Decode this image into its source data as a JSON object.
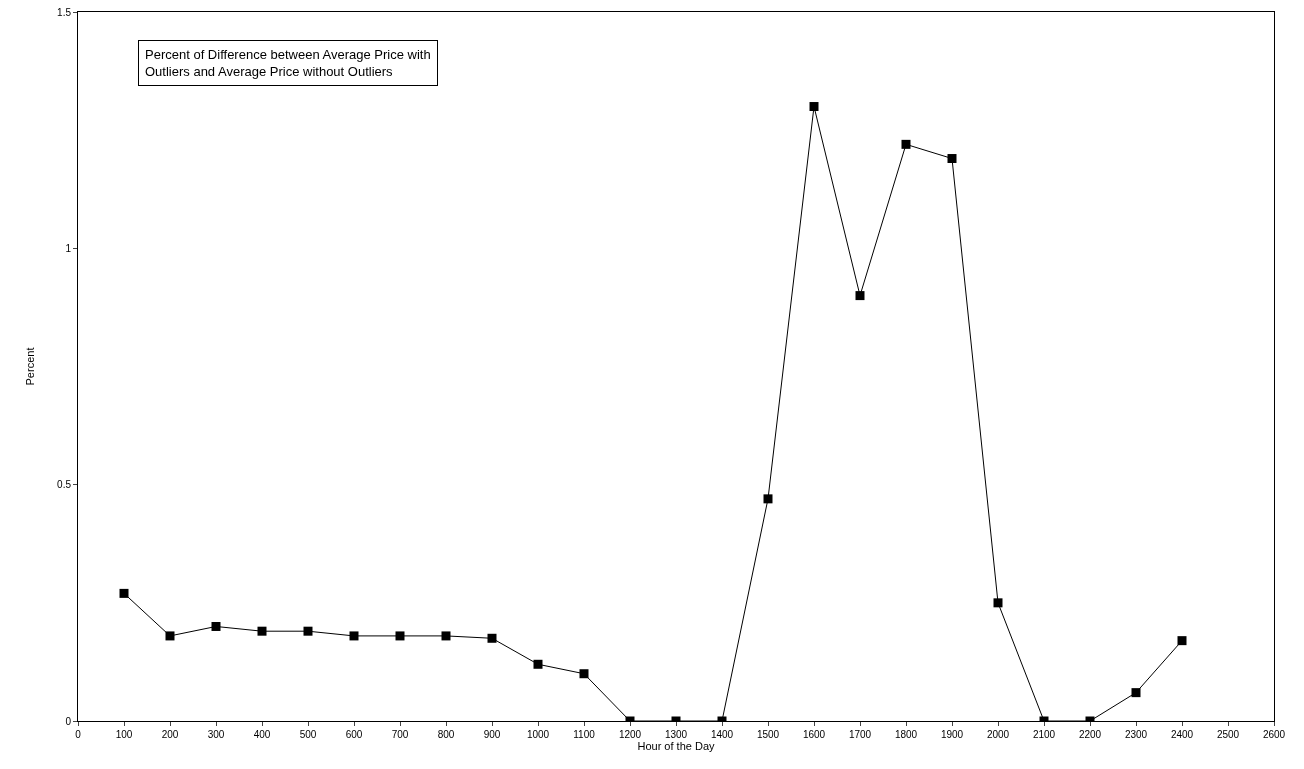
{
  "chart_data": {
    "type": "line",
    "xlabel": "Hour of the Day",
    "ylabel": "Percent",
    "annotations": [
      "Percent of Difference between Average Price with\nOutliers and Average Price without Outliers"
    ],
    "x": [
      100,
      200,
      300,
      400,
      500,
      600,
      700,
      800,
      900,
      1000,
      1100,
      1200,
      1300,
      1400,
      1500,
      1600,
      1700,
      1800,
      1900,
      2000,
      2100,
      2200,
      2300,
      2400
    ],
    "series": [
      {
        "color": "#000000",
        "values": [
          0.27,
          0.18,
          0.2,
          0.19,
          0.19,
          0.18,
          0.18,
          0.18,
          0.175,
          0.12,
          0.1,
          0,
          0,
          0,
          0.47,
          1.3,
          0.9,
          1.22,
          1.19,
          0.25,
          0,
          0,
          0.06,
          0.17
        ]
      }
    ],
    "xlim": [
      0,
      2600
    ],
    "xticks": [
      0,
      100,
      200,
      300,
      400,
      500,
      600,
      700,
      800,
      900,
      1000,
      1100,
      1200,
      1300,
      1400,
      1500,
      1600,
      1700,
      1800,
      1900,
      2000,
      2100,
      2200,
      2300,
      2400,
      2500,
      2600
    ],
    "ylim": [
      0,
      1.5
    ],
    "yticks": [
      0,
      0.5,
      1,
      1.5
    ],
    "grid": false,
    "legend": false,
    "marker": "square",
    "line_style": "solid"
  }
}
